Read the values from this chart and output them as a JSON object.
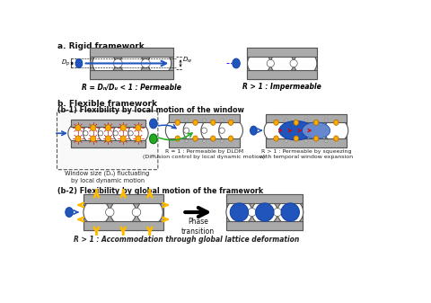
{
  "title_a": "a. Rigid framework",
  "title_b": "b. Flexible framework",
  "title_b1": "(b-1) Flexibility by local motion of the window",
  "title_b2": "(b-2) Flexibility by global motion of the framework",
  "label_a1": "R = Dₙ/Dᵤ < 1 : Permeable",
  "label_a2": "R > 1 : Impermeable",
  "label_b1_sub": "Window size (Dᵤ) fluctuating\nby local dynamic motion",
  "label_b1_mid": "R ≈ 1 : Permeable by DLDM\n(Diffusion control by local dynamic motion)",
  "label_b1_right": "R > 1 : Permeable by squeezing\nwith temporal window expansion",
  "label_b2": "R > 1 : Accommodation through global lattice deformation",
  "phase_transition": "Phase\ntransition",
  "gray": "#aaaaaa",
  "blue": "#2255bb",
  "orange": "#ffaa00",
  "green": "#22aa22",
  "red": "#dd0000",
  "white": "#ffffff",
  "bg": "#ffffff",
  "Dp_label": "Dₙ",
  "Dw_label": "Dᵤ"
}
